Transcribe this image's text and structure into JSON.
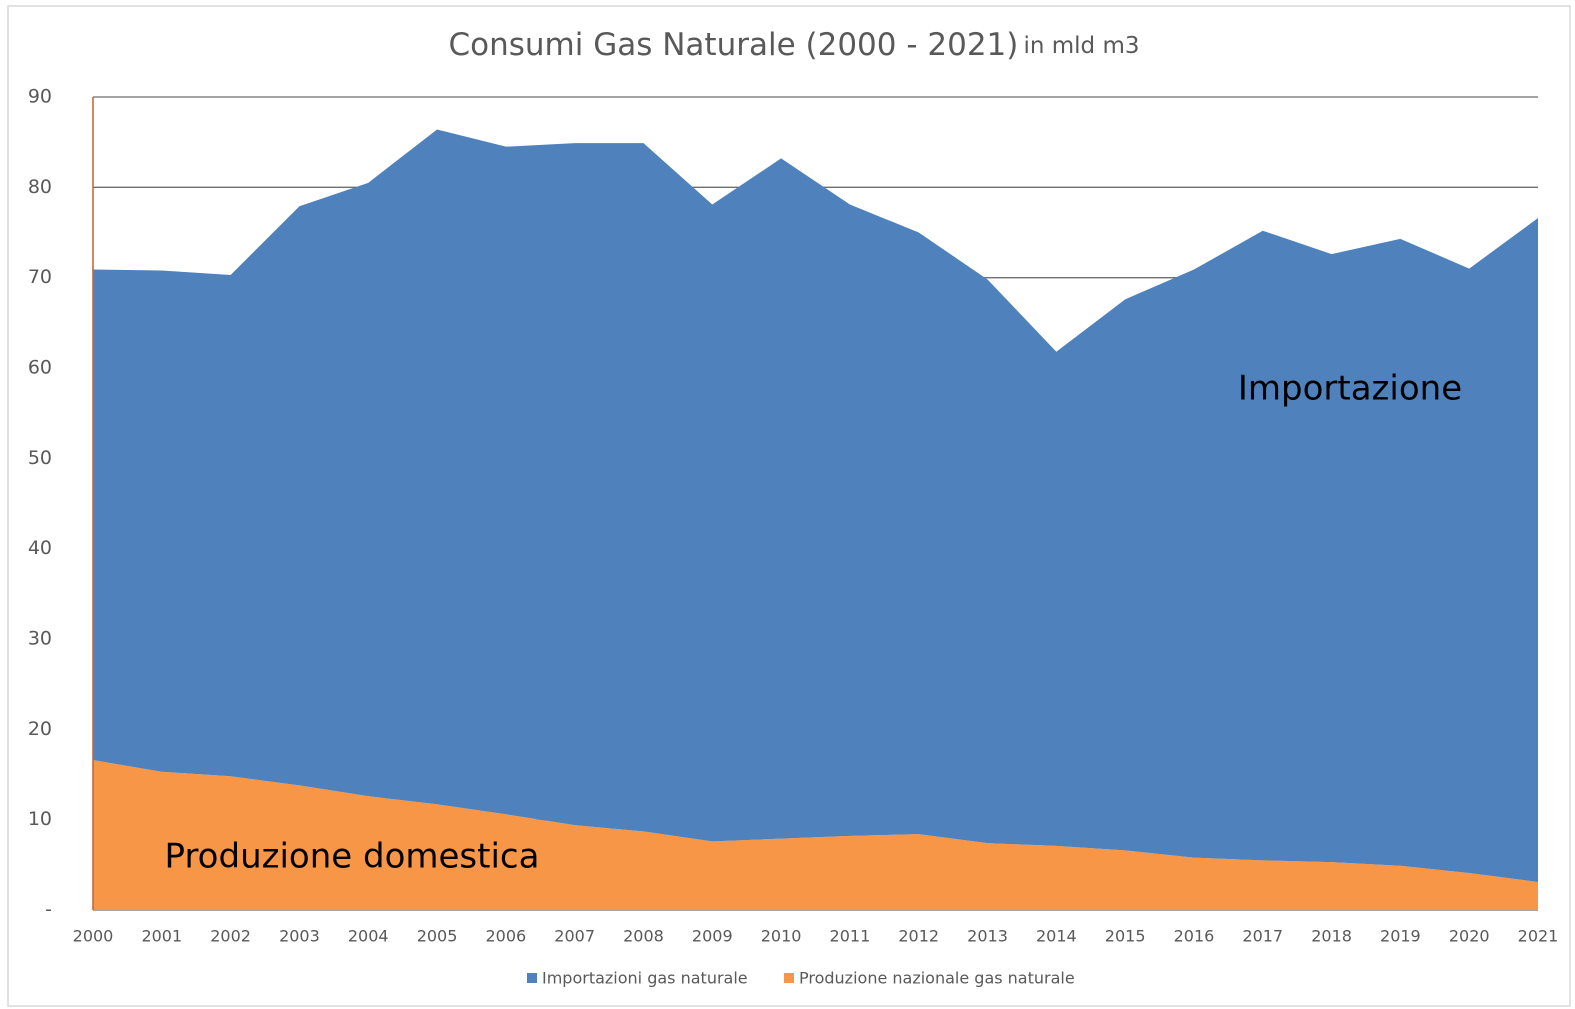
{
  "chart_data": {
    "type": "stacked_area",
    "title": "Consumi Gas Naturale (2000 - 2021)",
    "subtitle": "in mld m3",
    "categories": [
      "2000",
      "2001",
      "2002",
      "2003",
      "2004",
      "2005",
      "2006",
      "2007",
      "2008",
      "2009",
      "2010",
      "2011",
      "2012",
      "2013",
      "2014",
      "2015",
      "2016",
      "2017",
      "2018",
      "2019",
      "2020",
      "2021"
    ],
    "series": [
      {
        "name": "Importazioni gas naturale",
        "color": "#4f81bd",
        "values": [
          54.3,
          55.5,
          55.5,
          64.1,
          67.9,
          74.7,
          73.9,
          75.5,
          76.2,
          70.5,
          75.3,
          69.9,
          66.6,
          62.4,
          54.7,
          61.0,
          65.1,
          69.7,
          67.3,
          69.4,
          66.9,
          73.5
        ]
      },
      {
        "name": "Produzione nazionale gas naturale",
        "color": "#f79646",
        "values": [
          16.6,
          15.3,
          14.8,
          13.8,
          12.6,
          11.7,
          10.6,
          9.4,
          8.7,
          7.6,
          7.9,
          8.2,
          8.4,
          7.4,
          7.1,
          6.6,
          5.8,
          5.5,
          5.3,
          4.9,
          4.1,
          3.1
        ]
      }
    ],
    "annotations": [
      "Importazione",
      "Produzione domestica"
    ],
    "ylim": [
      0,
      90
    ],
    "yticks": [
      {
        "value": 0,
        "label": "-"
      },
      10,
      20,
      30,
      40,
      50,
      60,
      70,
      80,
      90
    ],
    "grid": true,
    "legend": "bottom"
  }
}
